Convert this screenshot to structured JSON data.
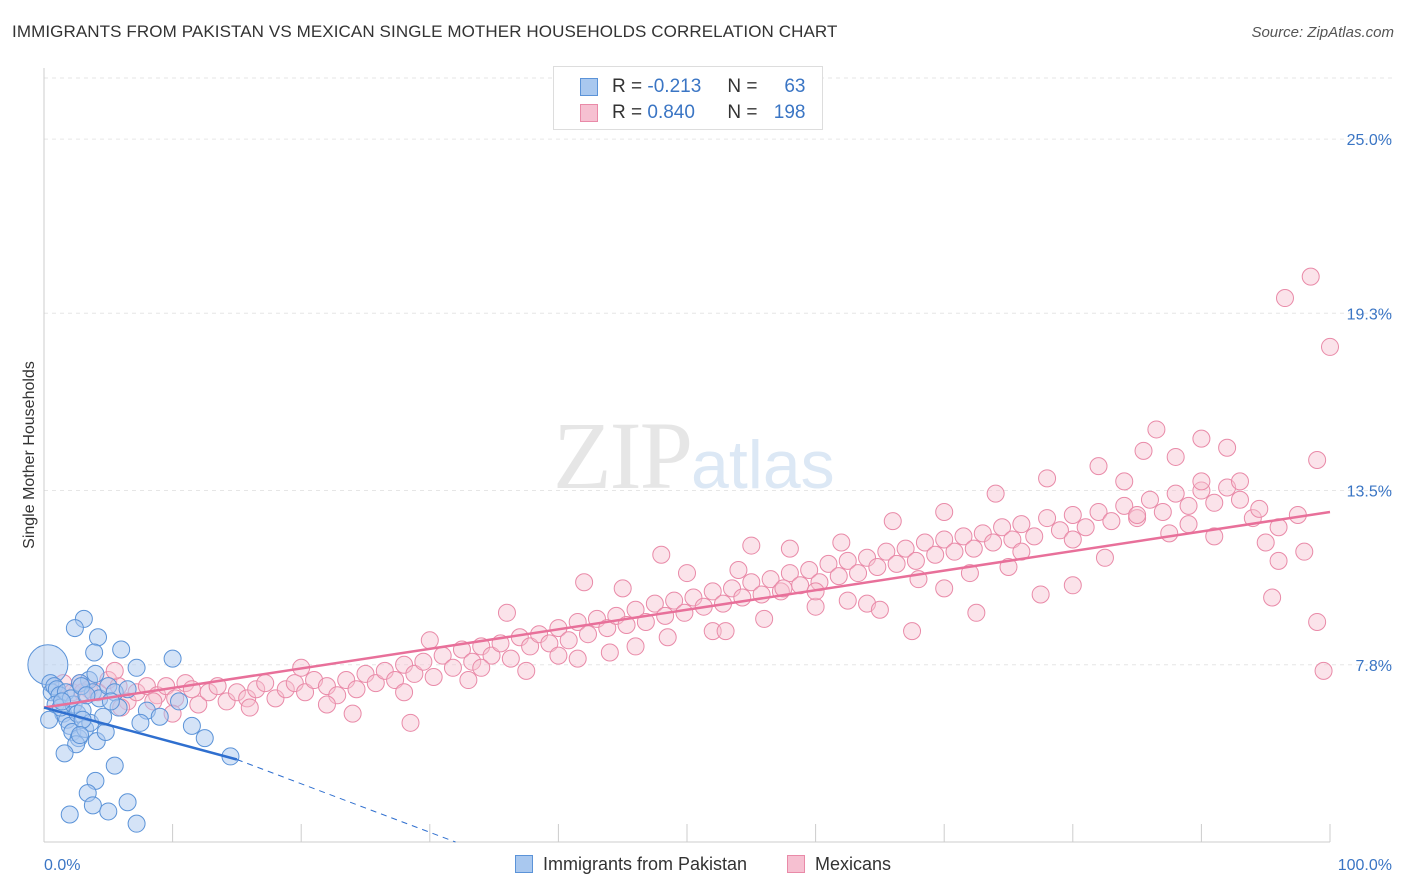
{
  "title": "IMMIGRANTS FROM PAKISTAN VS MEXICAN SINGLE MOTHER HOUSEHOLDS CORRELATION CHART",
  "source": "Source: ZipAtlas.com",
  "watermark": {
    "part1": "ZIP",
    "part2": "atlas"
  },
  "legend": {
    "row1": {
      "r_label": "R =",
      "r_value": "-0.213",
      "n_label": "N =",
      "n_value": "63"
    },
    "row2": {
      "r_label": "R =",
      "r_value": "0.840",
      "n_label": "N =",
      "n_value": "198"
    }
  },
  "colors": {
    "blue_fill": "#a9c8ef",
    "blue_stroke": "#5b93d8",
    "blue_line": "#2f6fcf",
    "pink_fill": "#f6c0d1",
    "pink_stroke": "#e98aa8",
    "pink_line": "#e8709a",
    "tick_text": "#3a75c4",
    "grid": "#e6e6e6"
  },
  "chart_data": {
    "type": "scatter",
    "title": "IMMIGRANTS FROM PAKISTAN VS MEXICAN SINGLE MOTHER HOUSEHOLDS CORRELATION CHART",
    "xlabel": "",
    "ylabel": "Single Mother Households",
    "xlim": [
      0,
      100
    ],
    "ylim": [
      2.0,
      27.0
    ],
    "x_tick_labels": {
      "0": "0.0%",
      "100": "100.0%"
    },
    "y_ticks": [
      {
        "value": 7.8,
        "label": "7.8%"
      },
      {
        "value": 13.5,
        "label": "13.5%"
      },
      {
        "value": 19.3,
        "label": "19.3%"
      },
      {
        "value": 25.0,
        "label": "25.0%"
      }
    ],
    "grid": true,
    "legend_position": "top-center",
    "series": [
      {
        "name": "Immigrants from Pakistan",
        "r": -0.213,
        "n": 63,
        "trend": {
          "x": [
            0,
            15
          ],
          "y": [
            6.4,
            4.7
          ],
          "dashed_extension_to": [
            32,
            2.0
          ]
        },
        "points": [
          [
            0.3,
            7.8
          ],
          [
            0.5,
            7.2
          ],
          [
            0.6,
            6.9
          ],
          [
            0.8,
            7.1
          ],
          [
            1.0,
            7.0
          ],
          [
            1.2,
            6.8
          ],
          [
            0.9,
            6.5
          ],
          [
            1.5,
            6.2
          ],
          [
            1.8,
            6.0
          ],
          [
            2.0,
            5.8
          ],
          [
            1.3,
            6.4
          ],
          [
            1.7,
            6.9
          ],
          [
            2.3,
            6.5
          ],
          [
            2.6,
            6.2
          ],
          [
            3.0,
            6.3
          ],
          [
            3.5,
            7.3
          ],
          [
            2.8,
            7.2
          ],
          [
            3.8,
            6.9
          ],
          [
            4.0,
            7.5
          ],
          [
            4.3,
            6.7
          ],
          [
            5.0,
            7.1
          ],
          [
            5.5,
            6.9
          ],
          [
            5.8,
            6.4
          ],
          [
            6.5,
            7.0
          ],
          [
            2.2,
            5.6
          ],
          [
            2.7,
            5.4
          ],
          [
            3.2,
            5.7
          ],
          [
            2.5,
            5.2
          ],
          [
            3.6,
            5.9
          ],
          [
            4.1,
            5.3
          ],
          [
            4.6,
            6.1
          ],
          [
            3.0,
            6.0
          ],
          [
            2.1,
            6.7
          ],
          [
            1.4,
            6.6
          ],
          [
            2.9,
            7.1
          ],
          [
            3.3,
            6.8
          ],
          [
            4.8,
            5.6
          ],
          [
            5.2,
            6.6
          ],
          [
            6.0,
            8.3
          ],
          [
            4.2,
            8.7
          ],
          [
            3.1,
            9.3
          ],
          [
            2.4,
            9.0
          ],
          [
            3.9,
            8.2
          ],
          [
            7.2,
            7.7
          ],
          [
            10.0,
            8.0
          ],
          [
            11.5,
            5.8
          ],
          [
            8.0,
            6.3
          ],
          [
            7.5,
            5.9
          ],
          [
            9.0,
            6.1
          ],
          [
            10.5,
            6.6
          ],
          [
            12.5,
            5.4
          ],
          [
            14.5,
            4.8
          ],
          [
            5.5,
            4.5
          ],
          [
            4.0,
            4.0
          ],
          [
            3.4,
            3.6
          ],
          [
            3.8,
            3.2
          ],
          [
            6.5,
            3.3
          ],
          [
            5.0,
            3.0
          ],
          [
            7.2,
            2.6
          ],
          [
            2.0,
            2.9
          ],
          [
            1.6,
            4.9
          ],
          [
            2.8,
            5.5
          ],
          [
            0.4,
            6.0
          ]
        ]
      },
      {
        "name": "Mexicans",
        "r": 0.84,
        "n": 198,
        "trend": {
          "x": [
            0,
            100
          ],
          "y": [
            6.4,
            12.8
          ]
        },
        "points": [
          [
            1.5,
            7.2
          ],
          [
            2.2,
            6.9
          ],
          [
            2.8,
            7.2
          ],
          [
            3.5,
            7.0
          ],
          [
            4.2,
            6.9
          ],
          [
            5.0,
            7.3
          ],
          [
            5.8,
            7.1
          ],
          [
            6.5,
            6.6
          ],
          [
            7.2,
            6.9
          ],
          [
            8.0,
            7.1
          ],
          [
            8.8,
            6.8
          ],
          [
            9.5,
            7.1
          ],
          [
            10.2,
            6.7
          ],
          [
            11.0,
            7.2
          ],
          [
            12.0,
            6.5
          ],
          [
            12.8,
            6.9
          ],
          [
            13.5,
            7.1
          ],
          [
            14.2,
            6.6
          ],
          [
            15.0,
            6.9
          ],
          [
            15.8,
            6.7
          ],
          [
            16.5,
            7.0
          ],
          [
            17.2,
            7.2
          ],
          [
            18.0,
            6.7
          ],
          [
            18.8,
            7.0
          ],
          [
            19.5,
            7.2
          ],
          [
            20.3,
            6.9
          ],
          [
            21.0,
            7.3
          ],
          [
            22.0,
            7.1
          ],
          [
            22.8,
            6.8
          ],
          [
            23.5,
            7.3
          ],
          [
            24.3,
            7.0
          ],
          [
            25.0,
            7.5
          ],
          [
            25.8,
            7.2
          ],
          [
            26.5,
            7.6
          ],
          [
            27.3,
            7.3
          ],
          [
            28.0,
            7.8
          ],
          [
            28.8,
            7.5
          ],
          [
            29.5,
            7.9
          ],
          [
            30.3,
            7.4
          ],
          [
            31.0,
            8.1
          ],
          [
            31.8,
            7.7
          ],
          [
            32.5,
            8.3
          ],
          [
            33.3,
            7.9
          ],
          [
            34.0,
            8.4
          ],
          [
            34.8,
            8.1
          ],
          [
            35.5,
            8.5
          ],
          [
            36.3,
            8.0
          ],
          [
            37.0,
            8.7
          ],
          [
            37.8,
            8.4
          ],
          [
            38.5,
            8.8
          ],
          [
            39.3,
            8.5
          ],
          [
            40.0,
            9.0
          ],
          [
            40.8,
            8.6
          ],
          [
            41.5,
            9.2
          ],
          [
            42.3,
            8.8
          ],
          [
            43.0,
            9.3
          ],
          [
            43.8,
            9.0
          ],
          [
            44.5,
            9.4
          ],
          [
            45.3,
            9.1
          ],
          [
            46.0,
            9.6
          ],
          [
            46.8,
            9.2
          ],
          [
            47.5,
            9.8
          ],
          [
            48.3,
            9.4
          ],
          [
            49.0,
            9.9
          ],
          [
            49.8,
            9.5
          ],
          [
            50.5,
            10.0
          ],
          [
            51.3,
            9.7
          ],
          [
            52.0,
            10.2
          ],
          [
            52.8,
            9.8
          ],
          [
            53.5,
            10.3
          ],
          [
            54.3,
            10.0
          ],
          [
            55.0,
            10.5
          ],
          [
            55.8,
            10.1
          ],
          [
            56.5,
            10.6
          ],
          [
            57.3,
            10.2
          ],
          [
            58.0,
            10.8
          ],
          [
            58.8,
            10.4
          ],
          [
            59.5,
            10.9
          ],
          [
            60.3,
            10.5
          ],
          [
            61.0,
            11.1
          ],
          [
            61.8,
            10.7
          ],
          [
            62.5,
            11.2
          ],
          [
            63.3,
            10.8
          ],
          [
            64.0,
            11.3
          ],
          [
            64.8,
            11.0
          ],
          [
            65.5,
            11.5
          ],
          [
            66.3,
            11.1
          ],
          [
            67.0,
            11.6
          ],
          [
            67.8,
            11.2
          ],
          [
            68.5,
            11.8
          ],
          [
            69.3,
            11.4
          ],
          [
            70.0,
            11.9
          ],
          [
            70.8,
            11.5
          ],
          [
            71.5,
            12.0
          ],
          [
            72.3,
            11.6
          ],
          [
            73.0,
            12.1
          ],
          [
            73.8,
            11.8
          ],
          [
            74.5,
            12.3
          ],
          [
            75.3,
            11.9
          ],
          [
            76.0,
            12.4
          ],
          [
            77.0,
            12.0
          ],
          [
            78.0,
            12.6
          ],
          [
            79.0,
            12.2
          ],
          [
            80.0,
            12.7
          ],
          [
            81.0,
            12.3
          ],
          [
            82.0,
            12.8
          ],
          [
            83.0,
            12.5
          ],
          [
            84.0,
            13.0
          ],
          [
            85.0,
            12.6
          ],
          [
            86.0,
            13.2
          ],
          [
            87.0,
            12.8
          ],
          [
            88.0,
            13.4
          ],
          [
            89.0,
            13.0
          ],
          [
            90.0,
            13.5
          ],
          [
            91.0,
            13.1
          ],
          [
            92.0,
            13.6
          ],
          [
            93.0,
            13.2
          ],
          [
            94.0,
            12.6
          ],
          [
            95.0,
            11.8
          ],
          [
            96.0,
            11.2
          ],
          [
            30.0,
            8.6
          ],
          [
            36.0,
            9.5
          ],
          [
            42.0,
            10.5
          ],
          [
            48.0,
            11.4
          ],
          [
            54.0,
            10.9
          ],
          [
            58.0,
            11.6
          ],
          [
            62.0,
            11.8
          ],
          [
            66.0,
            12.5
          ],
          [
            70.0,
            12.8
          ],
          [
            74.0,
            13.4
          ],
          [
            78.0,
            13.9
          ],
          [
            82.0,
            14.3
          ],
          [
            84.0,
            13.8
          ],
          [
            85.5,
            14.8
          ],
          [
            88.0,
            14.6
          ],
          [
            90.0,
            15.2
          ],
          [
            92.0,
            14.9
          ],
          [
            86.5,
            15.5
          ],
          [
            89.0,
            12.4
          ],
          [
            91.0,
            12.0
          ],
          [
            93.0,
            13.8
          ],
          [
            94.5,
            12.9
          ],
          [
            96.0,
            12.3
          ],
          [
            97.5,
            12.7
          ],
          [
            99.0,
            14.5
          ],
          [
            96.5,
            19.8
          ],
          [
            98.5,
            20.5
          ],
          [
            100.0,
            18.2
          ],
          [
            95.5,
            10.0
          ],
          [
            98.0,
            11.5
          ],
          [
            99.0,
            9.2
          ],
          [
            99.5,
            7.6
          ],
          [
            68.0,
            10.6
          ],
          [
            72.0,
            10.8
          ],
          [
            76.0,
            11.5
          ],
          [
            80.0,
            10.4
          ],
          [
            64.0,
            9.8
          ],
          [
            60.0,
            9.7
          ],
          [
            56.0,
            9.3
          ],
          [
            52.0,
            8.9
          ],
          [
            46.0,
            8.4
          ],
          [
            40.0,
            8.1
          ],
          [
            34.0,
            7.7
          ],
          [
            28.0,
            6.9
          ],
          [
            22.0,
            6.5
          ],
          [
            16.0,
            6.4
          ],
          [
            10.0,
            6.2
          ],
          [
            6.0,
            6.4
          ],
          [
            45.0,
            10.3
          ],
          [
            50.0,
            10.8
          ],
          [
            55.0,
            11.7
          ],
          [
            60.0,
            10.2
          ],
          [
            65.0,
            9.6
          ],
          [
            70.0,
            10.3
          ],
          [
            75.0,
            11.0
          ],
          [
            80.0,
            11.9
          ],
          [
            85.0,
            12.7
          ],
          [
            90.0,
            13.8
          ],
          [
            44.0,
            8.2
          ],
          [
            48.5,
            8.7
          ],
          [
            53.0,
            8.9
          ],
          [
            57.5,
            10.3
          ],
          [
            62.5,
            9.9
          ],
          [
            67.5,
            8.9
          ],
          [
            72.5,
            9.5
          ],
          [
            77.5,
            10.1
          ],
          [
            82.5,
            11.3
          ],
          [
            87.5,
            12.1
          ],
          [
            20.0,
            7.7
          ],
          [
            24.0,
            6.2
          ],
          [
            28.5,
            5.9
          ],
          [
            33.0,
            7.3
          ],
          [
            37.5,
            7.6
          ],
          [
            41.5,
            8.0
          ],
          [
            11.5,
            7.0
          ],
          [
            8.5,
            6.6
          ],
          [
            5.5,
            7.6
          ],
          [
            3.0,
            6.9
          ]
        ]
      }
    ]
  },
  "bottom_legend": {
    "item1": "Immigrants from Pakistan",
    "item2": "Mexicans"
  }
}
